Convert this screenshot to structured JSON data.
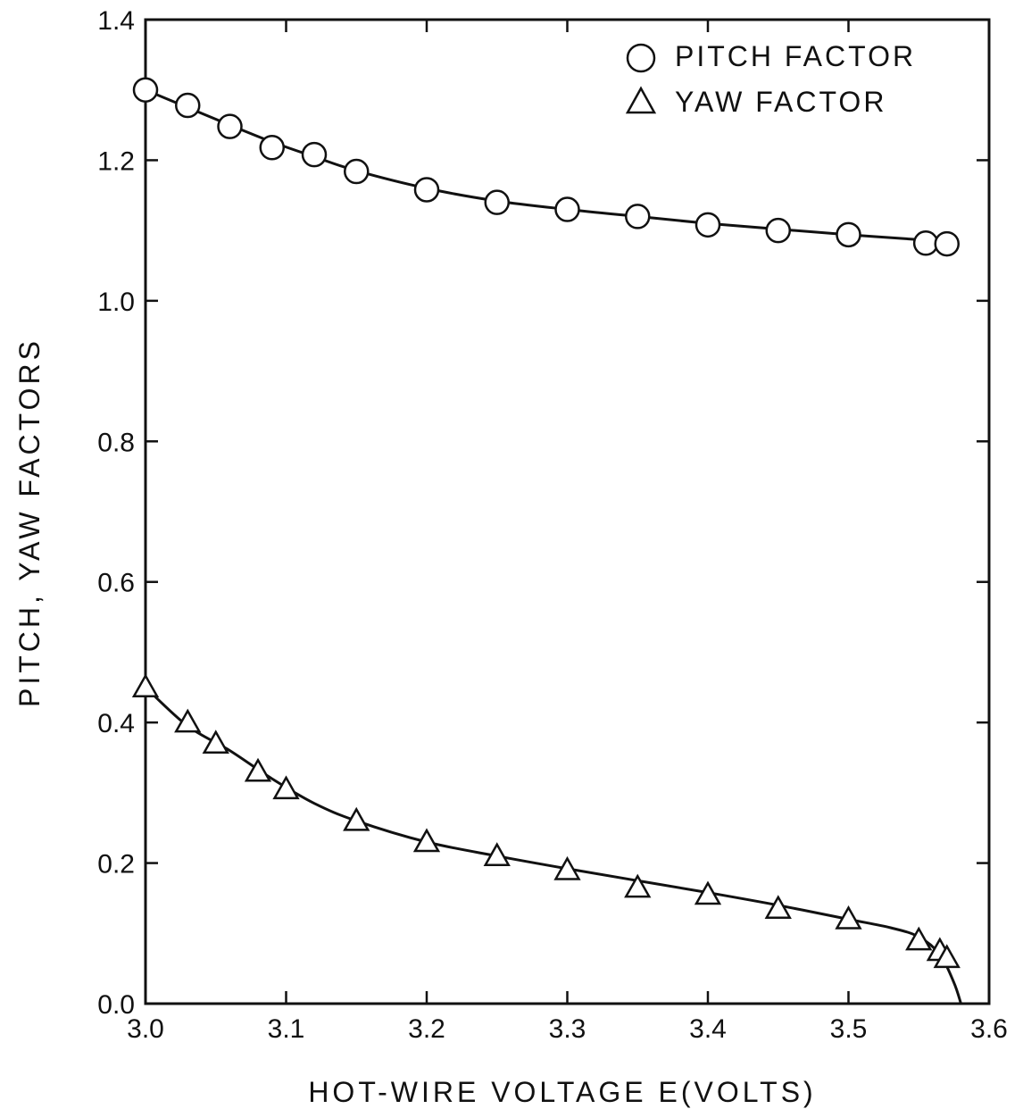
{
  "chart_data": {
    "type": "scatter",
    "title": "",
    "xlabel": "HOT-WIRE VOLTAGE E(VOLTS)",
    "ylabel": "PITCH, YAW FACTORS",
    "xlim": [
      3.0,
      3.6
    ],
    "ylim": [
      0.0,
      1.4
    ],
    "x_ticks": [
      "3.0",
      "3.1",
      "3.2",
      "3.3",
      "3.4",
      "3.5",
      "3.6"
    ],
    "y_ticks": [
      "0.0",
      "0.2",
      "0.4",
      "0.6",
      "0.8",
      "1.0",
      "1.2",
      "1.4"
    ],
    "grid": false,
    "legend_position": "top-right",
    "series": [
      {
        "name": "PITCH FACTOR",
        "marker": "circle",
        "x": [
          3.0,
          3.03,
          3.06,
          3.09,
          3.12,
          3.15,
          3.2,
          3.25,
          3.3,
          3.35,
          3.4,
          3.45,
          3.5,
          3.555,
          3.57
        ],
        "y": [
          1.3,
          1.278,
          1.248,
          1.218,
          1.208,
          1.184,
          1.158,
          1.14,
          1.13,
          1.12,
          1.108,
          1.1,
          1.094,
          1.082,
          1.081
        ],
        "curve_x": [
          3.0,
          3.03,
          3.06,
          3.09,
          3.12,
          3.15,
          3.2,
          3.25,
          3.3,
          3.35,
          3.4,
          3.45,
          3.5,
          3.55,
          3.57
        ],
        "curve_y": [
          1.3,
          1.275,
          1.25,
          1.226,
          1.205,
          1.185,
          1.16,
          1.142,
          1.13,
          1.12,
          1.11,
          1.102,
          1.094,
          1.087,
          1.083
        ]
      },
      {
        "name": "YAW FACTOR",
        "marker": "triangle",
        "x": [
          3.0,
          3.03,
          3.05,
          3.08,
          3.1,
          3.15,
          3.2,
          3.25,
          3.3,
          3.35,
          3.4,
          3.45,
          3.5,
          3.55,
          3.565,
          3.57
        ],
        "y": [
          0.45,
          0.4,
          0.37,
          0.33,
          0.305,
          0.26,
          0.23,
          0.21,
          0.19,
          0.165,
          0.155,
          0.135,
          0.12,
          0.09,
          0.075,
          0.065
        ],
        "curve_x": [
          3.0,
          3.03,
          3.06,
          3.09,
          3.12,
          3.15,
          3.2,
          3.25,
          3.3,
          3.35,
          3.4,
          3.45,
          3.5,
          3.53,
          3.55,
          3.565,
          3.575,
          3.58
        ],
        "curve_y": [
          0.45,
          0.395,
          0.36,
          0.32,
          0.285,
          0.26,
          0.23,
          0.21,
          0.192,
          0.175,
          0.158,
          0.14,
          0.12,
          0.108,
          0.095,
          0.07,
          0.03,
          0.0
        ]
      }
    ]
  }
}
